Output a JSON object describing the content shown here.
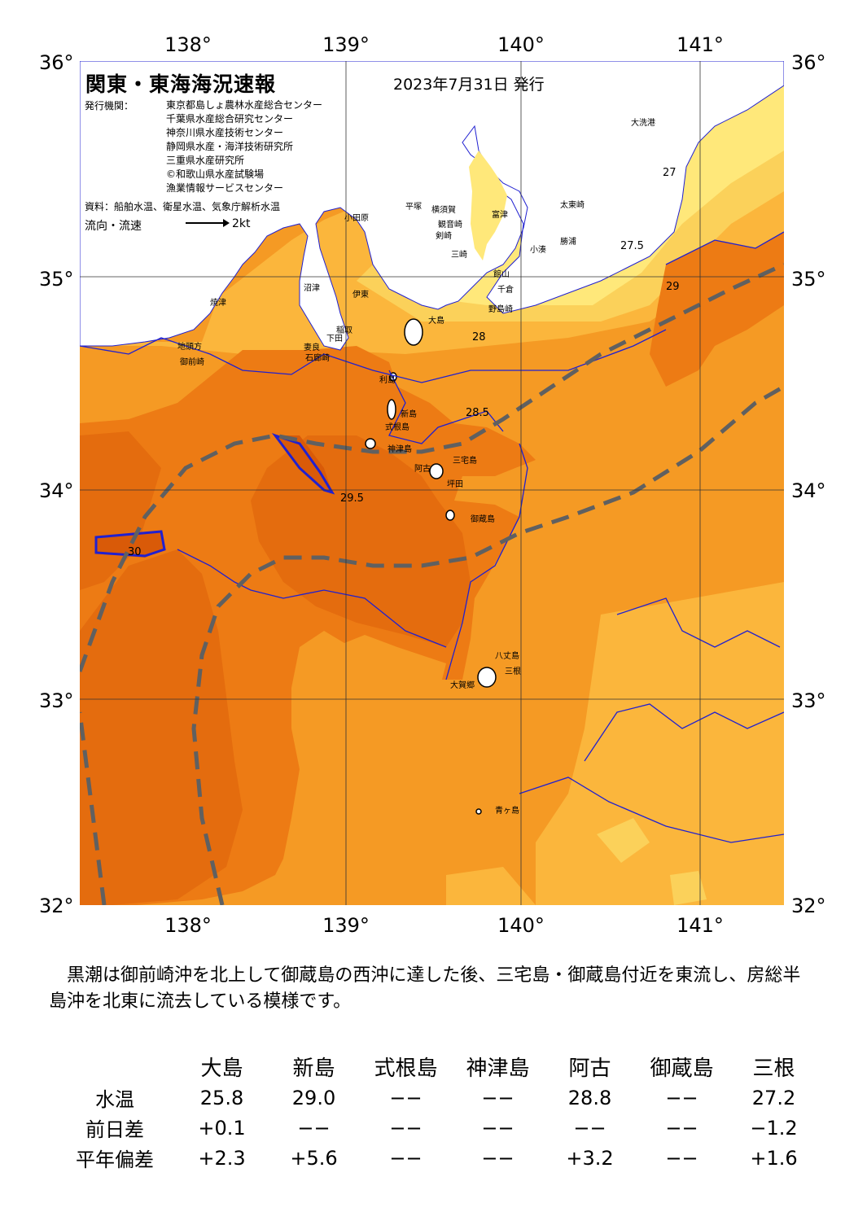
{
  "map": {
    "title": "関東・東海海況速報",
    "date": "2023年7月31日 発行",
    "issuer_label": "発行機関：",
    "issuers": [
      "東京都島しょ農林水産総合センター",
      "千葉県水産総合研究センター",
      "神奈川県水産技術センター",
      "静岡県水産・海洋技術研究所",
      "三重県水産研究所",
      "©和歌山県水産試験場",
      "漁業情報サービスセンター"
    ],
    "source": "資料：船舶水温、衛星水温、気象庁解析水温",
    "flow_label": "流向・流速",
    "flow_scale": "2kt",
    "lon_ticks": [
      "138°",
      "139°",
      "140°",
      "141°"
    ],
    "lat_ticks": [
      "36°",
      "35°",
      "34°",
      "33°",
      "32°"
    ],
    "place_names": {
      "oarai": "大洗港",
      "taito": "太東崎",
      "kominato": "小湊",
      "katsuura": "勝浦",
      "tateyama": "館山",
      "chikura": "千倉",
      "nojima": "野島崎",
      "odawara": "小田原",
      "hiratsuka": "平塚",
      "yokosuka": "横須賀",
      "kannonzaki": "観音崎",
      "tsurugisaki": "剣崎",
      "misaki": "三崎",
      "futtsu": "富津",
      "numazu": "沼津",
      "ito": "伊東",
      "inatori": "稲取",
      "shimoda": "下田",
      "mera": "妻良",
      "irozaki": "石廊崎",
      "yaizu": "焼津",
      "jitoukata": "地頭方",
      "omaezaki": "御前崎",
      "oshima": "大島",
      "toshima": "利島",
      "niijima": "新島",
      "shikinejima": "式根島",
      "kozushima": "神津島",
      "miyakejima": "三宅島",
      "ako": "阿古",
      "tsubota": "坪田",
      "mikurajima": "御蔵島",
      "hachijojima": "八丈島",
      "mitsune": "三根",
      "okago": "大賀郷",
      "aogashima": "青ヶ島"
    },
    "contour_labels": [
      "27",
      "27.5",
      "28",
      "28.5",
      "29",
      "29.5",
      "30"
    ]
  },
  "description": "黒潮は御前崎沖を北上して御蔵島の西沖に達した後、三宅島・御蔵島付近を東流し、房総半島沖を北東に流去している模様です。",
  "table": {
    "columns": [
      "大島",
      "新島",
      "式根島",
      "神津島",
      "阿古",
      "御蔵島",
      "三根"
    ],
    "rows": [
      {
        "label": "水温",
        "values": [
          "25.8",
          "29.0",
          "−−",
          "−−",
          "28.8",
          "−−",
          "27.2"
        ]
      },
      {
        "label": "前日差",
        "values": [
          "+0.1",
          "−−",
          "−−",
          "−−",
          "−−",
          "−−",
          "−1.2"
        ]
      },
      {
        "label": "平年偏差",
        "values": [
          "+2.3",
          "+5.6",
          "−−",
          "−−",
          "+3.2",
          "−−",
          "+1.6"
        ]
      }
    ]
  },
  "colors": {
    "land": "#ffffff",
    "sst_27": "#ffe87a",
    "sst_27_5": "#fbd15a",
    "sst_28": "#fbb63c",
    "sst_28_5": "#f59a24",
    "sst_29": "#ed7b14",
    "sst_29_5": "#e46c0e",
    "sst_30": "#d95a08",
    "kuroshio_axis": "#606060",
    "isotherm": "#2020d0"
  }
}
